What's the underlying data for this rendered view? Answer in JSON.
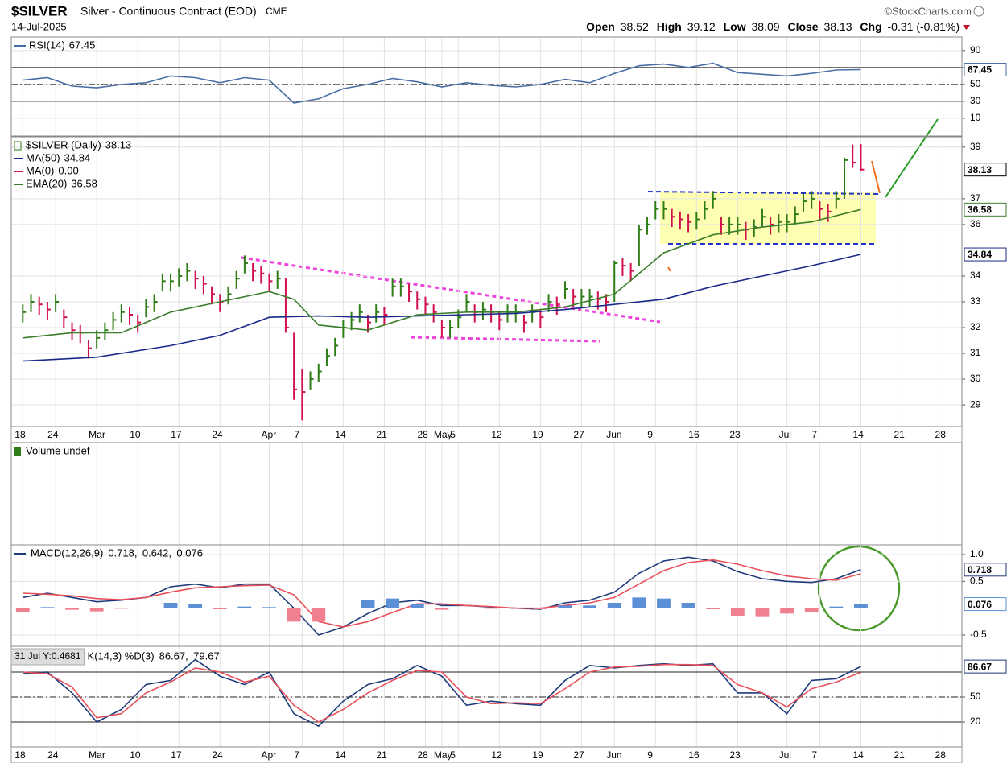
{
  "header": {
    "symbol": "$SILVER",
    "description": "Silver - Continuous Contract (EOD)",
    "exchange": "CME",
    "brand": "©StockCharts.com",
    "date": "14-Jul-2025",
    "open_label": "Open",
    "open": 38.52,
    "high_label": "High",
    "high": 39.12,
    "low_label": "Low",
    "low": 38.09,
    "close_label": "Close",
    "close": 38.13,
    "chg_label": "Chg",
    "chg": "-0.31 (-0.81%)"
  },
  "chart_data": [
    {
      "type": "line",
      "ylim": [
        -11,
        106
      ],
      "yticks": [
        90,
        70,
        50,
        30,
        10
      ],
      "grid": true,
      "hlines": [
        {
          "value": 70,
          "style": "solid"
        },
        {
          "value": 50,
          "style": "dashdot"
        },
        {
          "value": 30,
          "style": "solid"
        }
      ],
      "series": [
        {
          "name": "RSI(14)",
          "color": "#4a6fa5",
          "box": true,
          "x": [
            0,
            3,
            6,
            9,
            12,
            15,
            18,
            21,
            24,
            27,
            30,
            33,
            36,
            39,
            42,
            45,
            48,
            51,
            54,
            57,
            60,
            63,
            66,
            69,
            72,
            75,
            78,
            81,
            84,
            87,
            90,
            93,
            96,
            99,
            102
          ],
          "values": [
            55,
            58,
            48,
            46,
            50,
            52,
            60,
            58,
            52,
            58,
            55,
            28,
            33,
            45,
            50,
            57,
            53,
            47,
            52,
            49,
            47,
            50,
            56,
            52,
            63,
            72,
            74,
            70,
            75,
            64,
            62,
            60,
            63,
            67,
            67.45
          ]
        }
      ]
    },
    {
      "type": "ohlc",
      "name": "$SILVER (Daily)",
      "up_color": "#2e7d16",
      "down_color": "#d0104a",
      "box": true,
      "xlim": [
        -1.4,
        114.3
      ],
      "xticks": [
        {
          "value": 0,
          "label": "18"
        },
        {
          "value": 4,
          "label": "24"
        },
        {
          "value": 9,
          "label": "Mar"
        },
        {
          "value": 14,
          "label": "10"
        },
        {
          "value": 19,
          "label": "17"
        },
        {
          "value": 24,
          "label": "24"
        },
        {
          "value": 30,
          "label": "Apr"
        },
        {
          "value": 34,
          "label": "7"
        },
        {
          "value": 39,
          "label": "14"
        },
        {
          "value": 44,
          "label": "21"
        },
        {
          "value": 49,
          "label": "28"
        },
        {
          "value": 51,
          "label": "May"
        },
        {
          "value": 53,
          "label": "5"
        },
        {
          "value": 58,
          "label": "12"
        },
        {
          "value": 63,
          "label": "19"
        },
        {
          "value": 68,
          "label": "27"
        },
        {
          "value": 72,
          "label": "Jun"
        },
        {
          "value": 77,
          "label": "9"
        },
        {
          "value": 82,
          "label": "16"
        },
        {
          "value": 87,
          "label": "23"
        },
        {
          "value": 93,
          "label": "Jul"
        },
        {
          "value": 97,
          "label": "7"
        },
        {
          "value": 102,
          "label": "14"
        },
        {
          "value": 107,
          "label": "21"
        },
        {
          "value": 112,
          "label": "28"
        }
      ],
      "ylim": [
        28.16,
        39.4
      ],
      "yticks": [
        29,
        30,
        31,
        32,
        33,
        34,
        36,
        37,
        39
      ],
      "grid": true,
      "high": [
        32.9,
        33.3,
        33.2,
        33.0,
        33.3,
        32.7,
        32.2,
        32.1,
        31.5,
        31.9,
        32.2,
        32.6,
        32.9,
        32.8,
        32.5,
        33.1,
        33.3,
        34.1,
        34.1,
        34.3,
        34.5,
        34.2,
        34.0,
        33.6,
        33.3,
        33.6,
        34.2,
        34.8,
        34.5,
        34.4,
        34.1,
        34.2,
        33.9,
        31.8,
        30.4,
        30.3,
        30.6,
        31.2,
        31.6,
        32.3,
        32.6,
        32.9,
        32.5,
        32.9,
        32.8,
        33.9,
        33.9,
        33.7,
        33.4,
        33.2,
        32.9,
        32.3,
        32.3,
        32.7,
        33.3,
        32.9,
        33.0,
        32.9,
        32.6,
        32.9,
        32.9,
        32.5,
        32.9,
        32.7,
        33.3,
        33.2,
        33.8,
        33.5,
        33.5,
        33.5,
        33.4,
        33.3,
        34.6,
        34.7,
        34.5,
        36.0,
        36.3,
        36.9,
        36.9,
        36.6,
        36.5,
        36.4,
        36.5,
        36.9,
        37.3,
        36.3,
        36.3,
        36.3,
        36.1,
        36.2,
        36.6,
        36.3,
        36.4,
        36.4,
        36.7,
        37.2,
        37.3,
        36.9,
        36.8,
        37.3,
        38.6,
        39.1,
        39.12
      ],
      "low": [
        32.2,
        32.6,
        32.5,
        32.3,
        32.6,
        32.0,
        31.5,
        31.4,
        30.8,
        31.2,
        31.5,
        31.9,
        32.2,
        32.1,
        31.8,
        32.4,
        32.6,
        33.4,
        33.4,
        33.6,
        33.8,
        33.5,
        33.3,
        32.9,
        32.6,
        32.9,
        33.5,
        34.1,
        33.8,
        33.7,
        33.4,
        33.5,
        31.8,
        29.2,
        28.4,
        29.6,
        29.9,
        30.5,
        30.9,
        31.6,
        31.9,
        32.2,
        31.8,
        32.2,
        32.1,
        33.2,
        33.2,
        33.0,
        32.7,
        32.5,
        32.2,
        31.6,
        31.6,
        32.0,
        32.6,
        32.2,
        32.3,
        32.2,
        31.9,
        32.2,
        32.2,
        31.8,
        32.2,
        32.0,
        32.6,
        32.5,
        33.1,
        32.8,
        32.8,
        32.8,
        32.7,
        32.6,
        33.0,
        34.0,
        33.8,
        34.4,
        35.6,
        36.2,
        36.2,
        35.9,
        35.8,
        35.7,
        35.8,
        36.2,
        36.6,
        35.6,
        35.6,
        35.6,
        35.4,
        35.5,
        35.9,
        35.6,
        35.7,
        35.7,
        36.0,
        36.5,
        36.6,
        36.2,
        36.1,
        36.6,
        37.0,
        38.2,
        38.09
      ],
      "close": [
        32.6,
        33.0,
        32.9,
        32.7,
        33.0,
        32.4,
        31.9,
        31.8,
        31.2,
        31.6,
        31.9,
        32.3,
        32.6,
        32.5,
        32.2,
        32.8,
        33.0,
        33.8,
        33.8,
        34.0,
        34.2,
        33.9,
        33.7,
        33.3,
        33.0,
        33.3,
        33.9,
        34.5,
        34.2,
        34.1,
        33.8,
        33.9,
        32.0,
        29.6,
        29.5,
        30.0,
        30.3,
        30.9,
        31.3,
        32.0,
        32.3,
        32.6,
        32.2,
        32.6,
        32.5,
        33.6,
        33.6,
        33.4,
        33.1,
        32.9,
        32.6,
        32.0,
        32.0,
        32.4,
        33.0,
        32.6,
        32.7,
        32.6,
        32.3,
        32.6,
        32.6,
        32.2,
        32.6,
        32.4,
        33.0,
        32.9,
        33.5,
        33.2,
        33.2,
        33.2,
        33.1,
        33.0,
        34.5,
        34.4,
        34.2,
        35.8,
        36.0,
        36.6,
        36.6,
        36.3,
        36.2,
        36.1,
        36.2,
        36.6,
        37.0,
        36.0,
        36.0,
        36.0,
        35.8,
        35.9,
        36.3,
        36.0,
        36.1,
        36.1,
        36.4,
        36.9,
        37.0,
        36.6,
        36.5,
        37.0,
        38.5,
        38.4,
        38.13
      ],
      "series": [
        {
          "name": "MA(50)",
          "color": "#1a2a8a",
          "box": true,
          "x": [
            0,
            9,
            18,
            24,
            30,
            36,
            42,
            48,
            54,
            60,
            66,
            72,
            78,
            84,
            90,
            96,
            102
          ],
          "values": [
            30.7,
            30.85,
            31.3,
            31.7,
            32.4,
            32.45,
            32.4,
            32.45,
            32.5,
            32.55,
            32.7,
            32.9,
            33.1,
            33.6,
            34.0,
            34.4,
            34.84
          ]
        },
        {
          "name": "MA(0)",
          "color": "#d0104a",
          "x": [],
          "values": [],
          "value_label": "0.00"
        },
        {
          "name": "EMA(20)",
          "color": "#3a7d2a",
          "box": true,
          "x": [
            0,
            6,
            12,
            18,
            24,
            30,
            33,
            36,
            42,
            48,
            54,
            60,
            66,
            72,
            78,
            84,
            90,
            96,
            102
          ],
          "values": [
            31.6,
            31.8,
            31.8,
            32.6,
            33.0,
            33.4,
            33.1,
            32.1,
            31.9,
            32.5,
            32.6,
            32.6,
            32.8,
            33.3,
            34.9,
            35.6,
            35.9,
            36.1,
            36.58
          ]
        }
      ]
    },
    {
      "type": "volume",
      "legend": "Volume undef"
    },
    {
      "type": "line",
      "legend": "MACD(12,26,9)",
      "separator": ", ",
      "ylim": [
        -0.71,
        1.18
      ],
      "yticks": [
        {
          "value": 1,
          "label": "1.0"
        },
        0.5,
        -0.5
      ],
      "grid": true,
      "series": [
        {
          "name": "MACD",
          "color": "#1f3a7a",
          "box": true,
          "x": [
            0,
            3,
            6,
            9,
            12,
            15,
            18,
            21,
            24,
            27,
            30,
            33,
            36,
            39,
            42,
            45,
            48,
            51,
            54,
            57,
            60,
            63,
            66,
            69,
            72,
            75,
            78,
            81,
            84,
            87,
            90,
            93,
            96,
            99,
            102
          ],
          "values": [
            0.2,
            0.28,
            0.2,
            0.12,
            0.15,
            0.2,
            0.4,
            0.45,
            0.38,
            0.45,
            0.45,
            0.0,
            -0.5,
            -0.35,
            -0.1,
            0.1,
            0.15,
            0.05,
            0.05,
            0.02,
            0.0,
            -0.02,
            0.1,
            0.15,
            0.3,
            0.65,
            0.88,
            0.95,
            0.88,
            0.68,
            0.55,
            0.5,
            0.48,
            0.55,
            0.718
          ]
        },
        {
          "name": "Signal",
          "color": "#e8505b",
          "x": [
            0,
            3,
            6,
            9,
            12,
            15,
            18,
            21,
            24,
            27,
            30,
            33,
            36,
            39,
            42,
            45,
            48,
            51,
            54,
            57,
            60,
            63,
            66,
            69,
            72,
            75,
            78,
            81,
            84,
            87,
            90,
            93,
            96,
            99,
            102
          ],
          "values": [
            0.28,
            0.26,
            0.23,
            0.18,
            0.16,
            0.2,
            0.3,
            0.38,
            0.4,
            0.42,
            0.43,
            0.25,
            -0.25,
            -0.35,
            -0.25,
            -0.08,
            0.08,
            0.08,
            0.05,
            0.03,
            0.0,
            0.0,
            0.05,
            0.1,
            0.2,
            0.45,
            0.7,
            0.85,
            0.9,
            0.82,
            0.7,
            0.6,
            0.55,
            0.52,
            0.642
          ]
        },
        {
          "name": "Histogram",
          "type": "bar",
          "color": "#5b8fd6",
          "negative_color": "#f08090",
          "box": true,
          "x": [
            0,
            3,
            6,
            9,
            12,
            15,
            18,
            21,
            24,
            27,
            30,
            33,
            36,
            39,
            42,
            45,
            48,
            51,
            54,
            57,
            60,
            63,
            66,
            69,
            72,
            75,
            78,
            81,
            84,
            87,
            90,
            93,
            96,
            99,
            102
          ],
          "values": [
            -0.08,
            0.02,
            -0.03,
            -0.06,
            -0.01,
            0.0,
            0.1,
            0.07,
            -0.02,
            0.03,
            0.02,
            -0.25,
            -0.25,
            0.0,
            0.15,
            0.18,
            0.07,
            -0.03,
            0.0,
            -0.01,
            0.0,
            -0.02,
            0.05,
            0.05,
            0.1,
            0.2,
            0.18,
            0.1,
            -0.02,
            -0.14,
            -0.15,
            -0.1,
            -0.07,
            0.03,
            0.076
          ]
        }
      ]
    },
    {
      "type": "line",
      "legend": "K(14,3) %D(3)",
      "separator": ", ",
      "annotation": "31 Jul Y:0.4681",
      "xlim": [
        -1.4,
        114.3
      ],
      "xticks": [
        {
          "value": 0,
          "label": "18"
        },
        {
          "value": 4,
          "label": "24"
        },
        {
          "value": 9,
          "label": "Mar"
        },
        {
          "value": 14,
          "label": "10"
        },
        {
          "value": 19,
          "label": "17"
        },
        {
          "value": 24,
          "label": "24"
        },
        {
          "value": 30,
          "label": "Apr"
        },
        {
          "value": 34,
          "label": "7"
        },
        {
          "value": 39,
          "label": "14"
        },
        {
          "value": 44,
          "label": "21"
        },
        {
          "value": 49,
          "label": "28"
        },
        {
          "value": 51,
          "label": "May"
        },
        {
          "value": 53,
          "label": "5"
        },
        {
          "value": 58,
          "label": "12"
        },
        {
          "value": 63,
          "label": "19"
        },
        {
          "value": 68,
          "label": "27"
        },
        {
          "value": 72,
          "label": "Jun"
        },
        {
          "value": 77,
          "label": "9"
        },
        {
          "value": 82,
          "label": "16"
        },
        {
          "value": 87,
          "label": "23"
        },
        {
          "value": 93,
          "label": "Jul"
        },
        {
          "value": 97,
          "label": "7"
        },
        {
          "value": 102,
          "label": "14"
        },
        {
          "value": 107,
          "label": "21"
        },
        {
          "value": 112,
          "label": "28"
        }
      ],
      "ylim": [
        -10,
        111
      ],
      "yticks": [
        50,
        20
      ],
      "grid": true,
      "hlines": [
        {
          "value": 80,
          "style": "solid"
        },
        {
          "value": 50,
          "style": "dashdot"
        },
        {
          "value": 20,
          "style": "solid"
        }
      ],
      "series": [
        {
          "name": "%K",
          "color": "#1f3a7a",
          "box": true,
          "x": [
            0,
            3,
            6,
            9,
            12,
            15,
            18,
            21,
            24,
            27,
            30,
            33,
            36,
            39,
            42,
            45,
            48,
            51,
            54,
            57,
            60,
            63,
            66,
            69,
            72,
            75,
            78,
            81,
            84,
            87,
            90,
            93,
            96,
            99,
            102
          ],
          "values": [
            78,
            80,
            55,
            20,
            35,
            65,
            70,
            95,
            75,
            65,
            80,
            30,
            15,
            45,
            65,
            72,
            88,
            75,
            40,
            45,
            42,
            40,
            70,
            88,
            85,
            88,
            90,
            88,
            90,
            55,
            55,
            30,
            70,
            72,
            86.67
          ]
        },
        {
          "name": "%D",
          "color": "#e8505b",
          "x": [
            0,
            3,
            6,
            9,
            12,
            15,
            18,
            21,
            24,
            27,
            30,
            33,
            36,
            39,
            42,
            45,
            48,
            51,
            54,
            57,
            60,
            63,
            66,
            69,
            72,
            75,
            78,
            81,
            84,
            87,
            90,
            93,
            96,
            99,
            102
          ],
          "values": [
            80,
            78,
            62,
            25,
            30,
            55,
            68,
            85,
            80,
            68,
            75,
            40,
            20,
            35,
            55,
            70,
            82,
            80,
            50,
            42,
            43,
            42,
            60,
            80,
            86,
            87,
            89,
            89,
            88,
            65,
            55,
            38,
            60,
            68,
            79.67
          ]
        }
      ]
    }
  ]
}
